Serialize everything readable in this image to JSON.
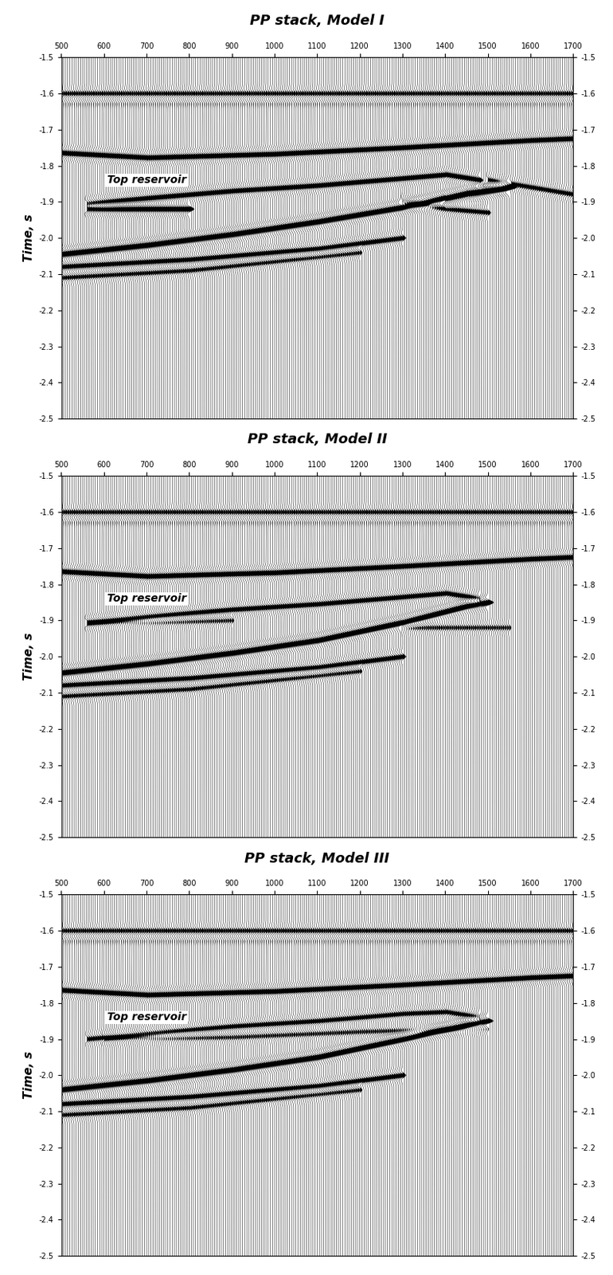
{
  "chart_data": [
    {
      "type": "wiggle",
      "title": "PP stack, Model I",
      "ylabel": "Time, s",
      "xlim": [
        500,
        1700
      ],
      "ylim": [
        -2.5,
        -1.5
      ],
      "xticks": [
        500,
        600,
        700,
        800,
        900,
        1000,
        1100,
        1200,
        1300,
        1400,
        1500,
        1600,
        1700
      ],
      "yticks": [
        -1.5,
        -1.6,
        -1.7,
        -1.8,
        -1.9,
        -2.0,
        -2.1,
        -2.2,
        -2.3,
        -2.4,
        -2.5
      ],
      "annotations": [
        {
          "text": "Top reservoir",
          "x": 700,
          "y": -1.84
        }
      ],
      "events": [
        {
          "x": [
            500,
            1700
          ],
          "y": [
            -1.6,
            -1.6
          ],
          "amplitude": 0.35
        },
        {
          "x": [
            500,
            1700
          ],
          "y": [
            -1.615,
            -1.615
          ],
          "amplitude": -0.25
        },
        {
          "x": [
            500,
            700,
            1000,
            1300,
            1600,
            1700
          ],
          "y": [
            -1.765,
            -1.778,
            -1.768,
            -1.75,
            -1.73,
            -1.725
          ],
          "amplitude": 0.9
        },
        {
          "x": [
            560,
            700,
            900,
            1100,
            1300,
            1400,
            1480
          ],
          "y": [
            -1.905,
            -1.89,
            -1.87,
            -1.855,
            -1.835,
            -1.825,
            -1.84
          ],
          "amplitude": 0.8
        },
        {
          "x": [
            560,
            800
          ],
          "y": [
            -1.92,
            -1.92
          ],
          "amplitude": 1.0
        },
        {
          "x": [
            500,
            700,
            900,
            1100,
            1300,
            1450,
            1550
          ],
          "y": [
            -2.045,
            -2.02,
            -1.99,
            -1.955,
            -1.915,
            -1.875,
            -1.86
          ],
          "amplitude": 1.2
        },
        {
          "x": [
            500,
            800,
            1100,
            1300
          ],
          "y": [
            -2.08,
            -2.06,
            -2.03,
            -2.0
          ],
          "amplitude": 0.7
        },
        {
          "x": [
            500,
            800,
            1200
          ],
          "y": [
            -2.11,
            -2.09,
            -2.04
          ],
          "amplitude": 0.5
        },
        {
          "x": [
            1300,
            1400,
            1500
          ],
          "y": [
            -1.9,
            -1.92,
            -1.93
          ],
          "amplitude": 0.6
        },
        {
          "x": [
            1500,
            1700
          ],
          "y": [
            -1.84,
            -1.88
          ],
          "amplitude": 0.6
        },
        {
          "x": [
            1400,
            1550
          ],
          "y": [
            -1.9,
            -1.86
          ],
          "amplitude": 0.6
        }
      ]
    },
    {
      "type": "wiggle",
      "title": "PP stack, Model II",
      "ylabel": "Time, s",
      "xlim": [
        500,
        1700
      ],
      "ylim": [
        -2.5,
        -1.5
      ],
      "xticks": [
        500,
        600,
        700,
        800,
        900,
        1000,
        1100,
        1200,
        1300,
        1400,
        1500,
        1600,
        1700
      ],
      "yticks": [
        -1.5,
        -1.6,
        -1.7,
        -1.8,
        -1.9,
        -2.0,
        -2.1,
        -2.2,
        -2.3,
        -2.4,
        -2.5
      ],
      "annotations": [
        {
          "text": "Top reservoir",
          "x": 700,
          "y": -1.84
        }
      ],
      "events": [
        {
          "x": [
            500,
            1700
          ],
          "y": [
            -1.6,
            -1.6
          ],
          "amplitude": 0.35
        },
        {
          "x": [
            500,
            1700
          ],
          "y": [
            -1.615,
            -1.615
          ],
          "amplitude": -0.25
        },
        {
          "x": [
            500,
            700,
            1000,
            1300,
            1600,
            1700
          ],
          "y": [
            -1.765,
            -1.778,
            -1.768,
            -1.75,
            -1.73,
            -1.725
          ],
          "amplitude": 0.9
        },
        {
          "x": [
            560,
            700,
            900,
            1100,
            1300,
            1400,
            1480
          ],
          "y": [
            -1.905,
            -1.89,
            -1.87,
            -1.855,
            -1.835,
            -1.825,
            -1.84
          ],
          "amplitude": 0.7
        },
        {
          "x": [
            560,
            900
          ],
          "y": [
            -1.91,
            -1.9
          ],
          "amplitude": 0.4
        },
        {
          "x": [
            500,
            700,
            900,
            1100,
            1300,
            1450,
            1500
          ],
          "y": [
            -2.045,
            -2.02,
            -1.99,
            -1.955,
            -1.905,
            -1.86,
            -1.85
          ],
          "amplitude": 1.2
        },
        {
          "x": [
            500,
            800,
            1100,
            1300
          ],
          "y": [
            -2.08,
            -2.06,
            -2.03,
            -2.0
          ],
          "amplitude": 0.7
        },
        {
          "x": [
            500,
            800,
            1200
          ],
          "y": [
            -2.11,
            -2.09,
            -2.04
          ],
          "amplitude": 0.5
        },
        {
          "x": [
            1300,
            1550
          ],
          "y": [
            -1.92,
            -1.92
          ],
          "amplitude": 0.4
        }
      ]
    },
    {
      "type": "wiggle",
      "title": "PP stack, Model III",
      "ylabel": "Time, s",
      "xlim": [
        500,
        1700
      ],
      "ylim": [
        -2.5,
        -1.5
      ],
      "xticks": [
        500,
        600,
        700,
        800,
        900,
        1000,
        1100,
        1200,
        1300,
        1400,
        1500,
        1600,
        1700
      ],
      "yticks": [
        -1.5,
        -1.6,
        -1.7,
        -1.8,
        -1.9,
        -2.0,
        -2.1,
        -2.2,
        -2.3,
        -2.4,
        -2.5
      ],
      "annotations": [
        {
          "text": "Top reservoir",
          "x": 700,
          "y": -1.84
        }
      ],
      "events": [
        {
          "x": [
            500,
            1700
          ],
          "y": [
            -1.6,
            -1.6
          ],
          "amplitude": 0.35
        },
        {
          "x": [
            500,
            1700
          ],
          "y": [
            -1.615,
            -1.615
          ],
          "amplitude": -0.25
        },
        {
          "x": [
            500,
            700,
            1000,
            1300,
            1600,
            1700
          ],
          "y": [
            -1.765,
            -1.778,
            -1.768,
            -1.75,
            -1.73,
            -1.725
          ],
          "amplitude": 0.9
        },
        {
          "x": [
            560,
            700,
            900,
            1100,
            1300,
            1400,
            1480
          ],
          "y": [
            -1.9,
            -1.885,
            -1.865,
            -1.85,
            -1.83,
            -1.825,
            -1.84
          ],
          "amplitude": 0.6
        },
        {
          "x": [
            600,
            900,
            1200,
            1500
          ],
          "y": [
            -1.9,
            -1.895,
            -1.88,
            -1.87
          ],
          "amplitude": 0.4
        },
        {
          "x": [
            500,
            700,
            900,
            1100,
            1300,
            1450,
            1500
          ],
          "y": [
            -2.04,
            -2.015,
            -1.985,
            -1.95,
            -1.9,
            -1.86,
            -1.85
          ],
          "amplitude": 1.2
        },
        {
          "x": [
            500,
            800,
            1100,
            1300
          ],
          "y": [
            -2.08,
            -2.06,
            -2.03,
            -2.0
          ],
          "amplitude": 0.7
        },
        {
          "x": [
            500,
            800,
            1200
          ],
          "y": [
            -2.11,
            -2.09,
            -2.04
          ],
          "amplitude": 0.5
        }
      ]
    }
  ]
}
